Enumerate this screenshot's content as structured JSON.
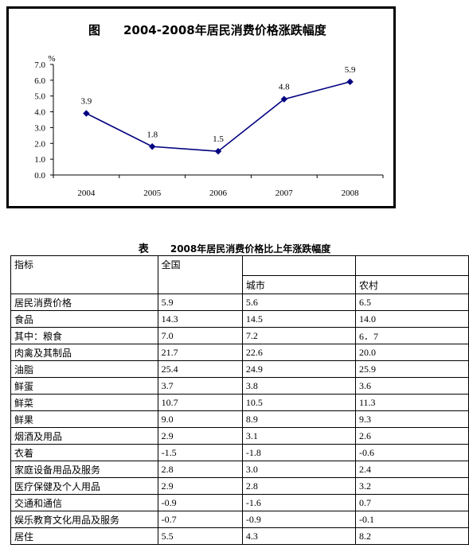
{
  "chart": {
    "fig_label": "图",
    "title": "2004-2008年居民消费价格涨跌幅度"
  },
  "chart_data": {
    "type": "line",
    "title": "2004-2008年居民消费价格涨跌幅度",
    "ylabel": "%",
    "x": [
      "2004",
      "2005",
      "2006",
      "2007",
      "2008"
    ],
    "values": [
      3.9,
      1.8,
      1.5,
      4.8,
      5.9
    ],
    "data_labels": [
      "3.9",
      "1.8",
      "1.5",
      "4.8",
      "5.9"
    ],
    "yticks": [
      "0.0",
      "1.0",
      "2.0",
      "3.0",
      "4.0",
      "5.0",
      "6.0",
      "7.0"
    ],
    "ylim": [
      0,
      7
    ],
    "grid": false,
    "line_color": "#000080"
  },
  "table": {
    "label": "表",
    "title": "2008年居民消费价格比上年涨跌幅度",
    "headers": {
      "indicator": "指标",
      "national": "全国",
      "urban": "城市",
      "rural": "农村"
    },
    "rows": [
      [
        "居民消费价格",
        "5.9",
        "5.6",
        "6.5"
      ],
      [
        "食品",
        "14.3",
        "14.5",
        "14.0"
      ],
      [
        "其中：粮食",
        "7.0",
        "7.2",
        "6．7"
      ],
      [
        "肉禽及其制品",
        "21.7",
        "22.6",
        "20.0"
      ],
      [
        "油脂",
        "25.4",
        "24.9",
        "25.9"
      ],
      [
        "鲜蛋",
        "3.7",
        "3.8",
        "3.6"
      ],
      [
        "鲜菜",
        "10.7",
        "10.5",
        "11.3"
      ],
      [
        "鲜果",
        "9.0",
        "8.9",
        "9.3"
      ],
      [
        "烟酒及用品",
        "2.9",
        "3.1",
        "2.6"
      ],
      [
        "衣着",
        "-1.5",
        "-1.8",
        "-0.6"
      ],
      [
        "家庭设备用品及服务",
        "2.8",
        "3.0",
        "2.4"
      ],
      [
        "医疗保健及个人用品",
        "2.9",
        "2.8",
        "3.2"
      ],
      [
        "交通和通信",
        "-0.9",
        "-1.6",
        "0.7"
      ],
      [
        "娱乐教育文化用品及服务",
        "-0.7",
        "-0.9",
        "-0.1"
      ],
      [
        "居住",
        "5.5",
        "4.3",
        "8.2"
      ]
    ]
  }
}
